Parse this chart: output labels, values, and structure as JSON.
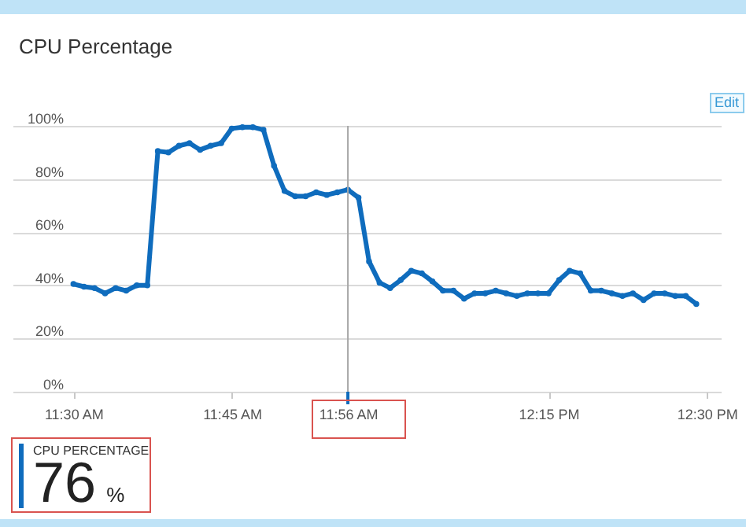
{
  "chart_data": {
    "type": "line",
    "title": "CPU Percentage",
    "x": [
      11.5,
      11.5167,
      11.5333,
      11.55,
      11.5667,
      11.5833,
      11.6,
      11.6167,
      11.6333,
      11.65,
      11.6667,
      11.6833,
      11.7,
      11.7167,
      11.7333,
      11.75,
      11.7667,
      11.7833,
      11.8,
      11.8167,
      11.8333,
      11.85,
      11.8667,
      11.8833,
      11.9,
      11.9167,
      11.9333,
      11.95,
      11.9667,
      11.9833,
      12.0,
      12.0167,
      12.0333,
      12.05,
      12.0667,
      12.0833,
      12.1,
      12.1167,
      12.1333,
      12.15,
      12.1667,
      12.1833,
      12.2,
      12.2167,
      12.2333,
      12.25,
      12.2667,
      12.2833,
      12.3,
      12.3167,
      12.3333,
      12.35,
      12.3667,
      12.3833,
      12.4,
      12.4167,
      12.4333,
      12.45,
      12.4667,
      12.4833
    ],
    "series": [
      {
        "color": "#0f6cbd",
        "values": [
          40.5,
          39.5,
          39,
          37,
          39,
          38,
          40,
          40,
          90.5,
          90,
          92.5,
          93.5,
          91,
          92.5,
          93.5,
          99,
          99.5,
          99.5,
          98.5,
          85,
          75.5,
          73.5,
          73.5,
          75,
          74,
          75,
          76,
          73,
          49,
          41,
          39,
          42,
          45.5,
          44.5,
          41.5,
          38,
          38,
          35,
          37,
          37,
          38,
          37,
          36,
          37,
          37,
          37,
          42,
          45.5,
          44.5,
          38,
          38,
          37,
          36,
          37,
          34.5,
          37,
          37,
          36,
          36,
          33
        ]
      }
    ],
    "xlim": [
      11.404,
      12.522
    ],
    "xticks": [
      {
        "value": 11.5,
        "label": "11:30 AM"
      },
      {
        "value": 11.75,
        "label": "11:45 AM"
      },
      {
        "value": 11.9333,
        "label": "11:56 AM"
      },
      {
        "value": 12.25,
        "label": "12:15 PM"
      },
      {
        "value": 12.5,
        "label": "12:30 PM"
      }
    ],
    "ylim": [
      0,
      100
    ],
    "yticks": [
      {
        "value": 0,
        "label": "0%"
      },
      {
        "value": 20,
        "label": "20%"
      },
      {
        "value": 40,
        "label": "40%"
      },
      {
        "value": 60,
        "label": "60%"
      },
      {
        "value": 80,
        "label": "80%"
      },
      {
        "value": 100,
        "label": "100%"
      }
    ],
    "grid": "y",
    "marker": "circle",
    "line_style": "solid",
    "ref_lines": [
      {
        "axis": "x",
        "value": 11.9333,
        "color": "#a6a6a6"
      }
    ],
    "annotations": [
      "Edit",
      "CPU PERCENTAGE",
      "76 %"
    ]
  }
}
